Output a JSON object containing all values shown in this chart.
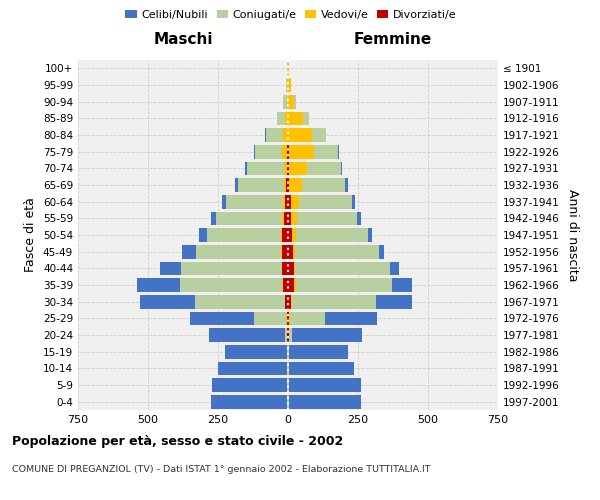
{
  "age_groups": [
    "0-4",
    "5-9",
    "10-14",
    "15-19",
    "20-24",
    "25-29",
    "30-34",
    "35-39",
    "40-44",
    "45-49",
    "50-54",
    "55-59",
    "60-64",
    "65-69",
    "70-74",
    "75-79",
    "80-84",
    "85-89",
    "90-94",
    "95-99",
    "100+"
  ],
  "birth_years": [
    "1997-2001",
    "1992-1996",
    "1987-1991",
    "1982-1986",
    "1977-1981",
    "1972-1976",
    "1967-1971",
    "1962-1966",
    "1957-1961",
    "1952-1956",
    "1947-1951",
    "1942-1946",
    "1937-1941",
    "1932-1936",
    "1927-1931",
    "1922-1926",
    "1917-1921",
    "1912-1916",
    "1907-1911",
    "1902-1906",
    "≤ 1901"
  ],
  "male_celibi": [
    270,
    265,
    245,
    220,
    270,
    230,
    195,
    155,
    75,
    50,
    30,
    20,
    15,
    10,
    7,
    4,
    2,
    1,
    0,
    0,
    0
  ],
  "male_coniugati": [
    5,
    5,
    5,
    5,
    10,
    115,
    320,
    365,
    360,
    305,
    265,
    235,
    205,
    165,
    130,
    95,
    60,
    28,
    12,
    4,
    1
  ],
  "male_vedovi": [
    0,
    0,
    0,
    0,
    0,
    1,
    2,
    2,
    3,
    3,
    4,
    5,
    5,
    8,
    12,
    20,
    18,
    12,
    5,
    2,
    1
  ],
  "male_divorziati": [
    0,
    0,
    0,
    0,
    2,
    5,
    10,
    18,
    20,
    22,
    20,
    16,
    12,
    6,
    3,
    2,
    1,
    0,
    0,
    0,
    0
  ],
  "female_nubili": [
    255,
    255,
    230,
    210,
    250,
    185,
    130,
    70,
    30,
    18,
    15,
    12,
    10,
    8,
    6,
    4,
    2,
    1,
    0,
    0,
    0
  ],
  "female_coniugate": [
    5,
    5,
    5,
    5,
    12,
    125,
    300,
    345,
    340,
    300,
    255,
    215,
    190,
    155,
    120,
    85,
    48,
    22,
    8,
    3,
    1
  ],
  "female_vedove": [
    0,
    0,
    0,
    0,
    1,
    2,
    4,
    5,
    5,
    8,
    15,
    20,
    30,
    45,
    65,
    90,
    85,
    52,
    22,
    9,
    2
  ],
  "female_divorziate": [
    0,
    0,
    0,
    0,
    2,
    5,
    10,
    22,
    20,
    18,
    15,
    12,
    10,
    5,
    3,
    2,
    1,
    0,
    0,
    0,
    0
  ],
  "color_celibi": "#4472c4",
  "color_coniugati": "#b8cfa0",
  "color_vedovi": "#ffc000",
  "color_divorziati": "#c00000",
  "xlim": 750,
  "title": "Popolazione per età, sesso e stato civile - 2002",
  "subtitle": "COMUNE DI PREGANZIOL (TV) - Dati ISTAT 1° gennaio 2002 - Elaborazione TUTTITALIA.IT",
  "xlabel_left": "Maschi",
  "xlabel_right": "Femmine",
  "ylabel_left": "Fasce di età",
  "ylabel_right": "Anni di nascita",
  "bg_color": "#ffffff",
  "panel_bg": "#f0f0f0",
  "grid_color": "#cccccc"
}
